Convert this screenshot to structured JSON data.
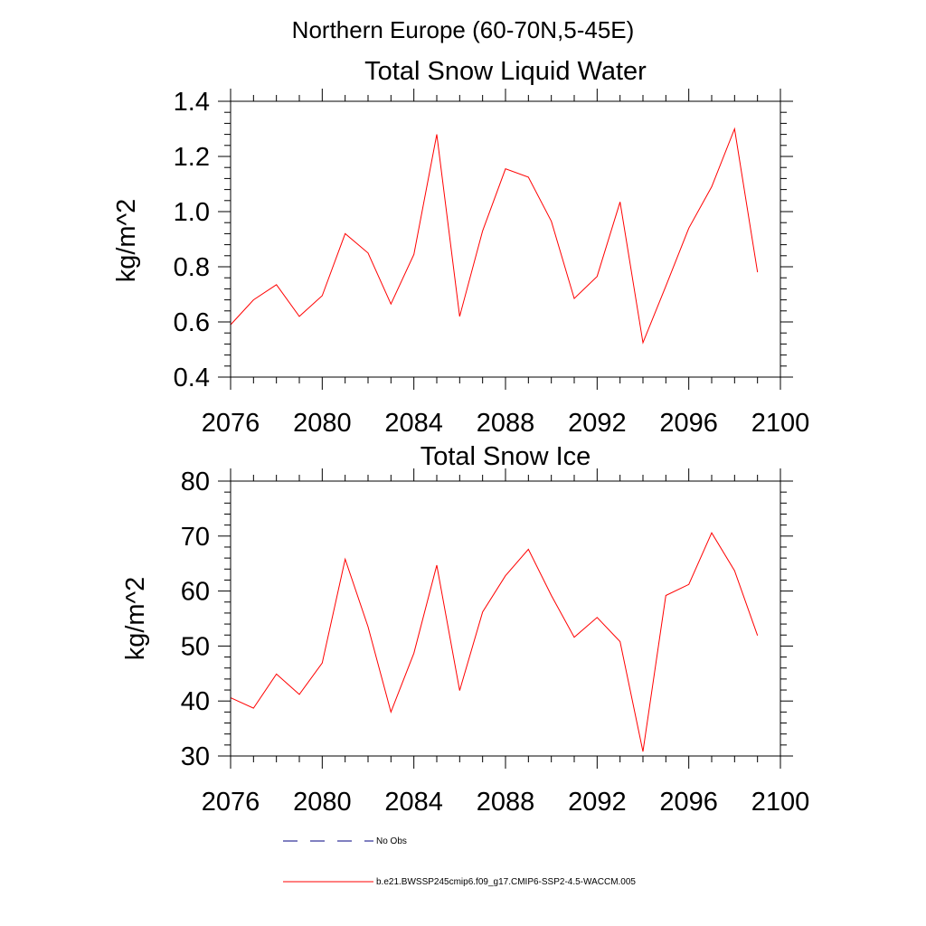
{
  "suptitle": "Northern Europe (60-70N,5-45E)",
  "colors": {
    "series": "#ff0000",
    "obs": "#000080",
    "axes": "#000000"
  },
  "chart_data": [
    {
      "type": "line",
      "title": "Total Snow Liquid Water",
      "xlabel": "",
      "ylabel": "kg/m^2",
      "xlim": [
        2076,
        2100
      ],
      "ylim": [
        0.4,
        1.4
      ],
      "xticks": [
        2076,
        2080,
        2084,
        2088,
        2092,
        2096,
        2100
      ],
      "xtick_labels": [
        "2076",
        "2080",
        "2084",
        "2088",
        "2092",
        "2096",
        "2100"
      ],
      "yticks": [
        0.4,
        0.6,
        0.8,
        1.0,
        1.2,
        1.4
      ],
      "ytick_labels": [
        "0.4",
        "0.6",
        "0.8",
        "1.0",
        "1.2",
        "1.4"
      ],
      "series": [
        {
          "name": "b.e21.BWSSP245cmip6.f09_g17.CMIP6-SSP2-4.5-WACCM.005",
          "x": [
            2076,
            2077,
            2078,
            2079,
            2080,
            2081,
            2082,
            2083,
            2084,
            2085,
            2086,
            2087,
            2088,
            2089,
            2090,
            2091,
            2092,
            2093,
            2094,
            2095,
            2096,
            2097,
            2098,
            2099
          ],
          "values": [
            0.59,
            0.68,
            0.735,
            0.62,
            0.695,
            0.92,
            0.85,
            0.665,
            0.845,
            1.28,
            0.62,
            0.93,
            1.155,
            1.125,
            0.965,
            0.685,
            0.765,
            1.035,
            0.525,
            0.73,
            0.94,
            1.09,
            1.3,
            0.78
          ]
        }
      ]
    },
    {
      "type": "line",
      "title": "Total Snow Ice",
      "xlabel": "",
      "ylabel": "kg/m^2",
      "xlim": [
        2076,
        2100
      ],
      "ylim": [
        30,
        80
      ],
      "xticks": [
        2076,
        2080,
        2084,
        2088,
        2092,
        2096,
        2100
      ],
      "xtick_labels": [
        "2076",
        "2080",
        "2084",
        "2088",
        "2092",
        "2096",
        "2100"
      ],
      "yticks": [
        30,
        40,
        50,
        60,
        70,
        80
      ],
      "ytick_labels": [
        "30",
        "40",
        "50",
        "60",
        "70",
        "80"
      ],
      "series": [
        {
          "name": "b.e21.BWSSP245cmip6.f09_g17.CMIP6-SSP2-4.5-WACCM.005",
          "x": [
            2076,
            2077,
            2078,
            2079,
            2080,
            2081,
            2082,
            2083,
            2084,
            2085,
            2086,
            2087,
            2088,
            2089,
            2090,
            2091,
            2092,
            2093,
            2094,
            2095,
            2096,
            2097,
            2098,
            2099
          ],
          "values": [
            40.6,
            38.7,
            44.9,
            41.2,
            46.9,
            65.8,
            53.5,
            38.0,
            48.7,
            64.7,
            41.9,
            56.2,
            62.8,
            67.6,
            59.2,
            51.6,
            55.2,
            50.8,
            30.8,
            59.2,
            61.2,
            70.6,
            63.7,
            51.9
          ]
        }
      ]
    }
  ],
  "legend": [
    {
      "label": "No Obs",
      "style": "dashed",
      "color": "#000080"
    },
    {
      "label": "b.e21.BWSSP245cmip6.f09_g17.CMIP6-SSP2-4.5-WACCM.005",
      "style": "solid",
      "color": "#ff0000"
    }
  ]
}
